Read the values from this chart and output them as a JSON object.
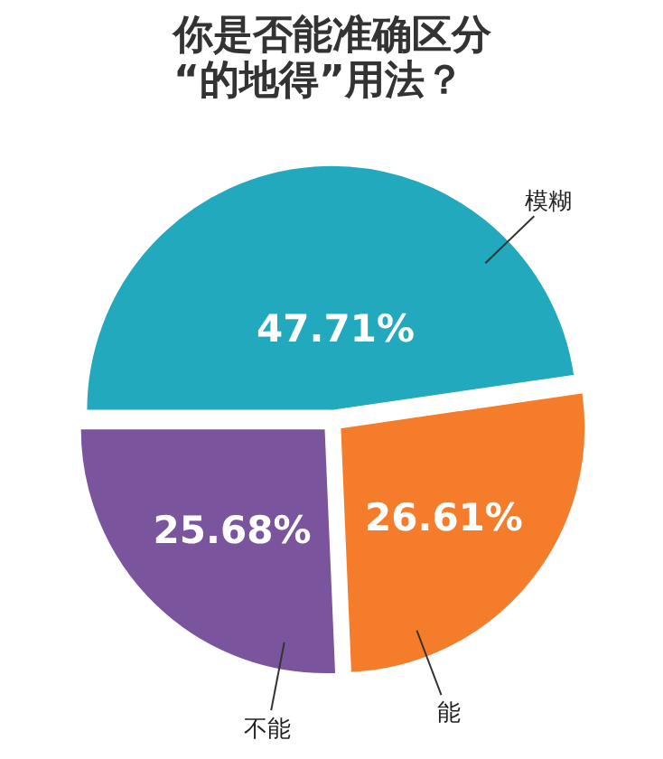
{
  "chart_data": {
    "type": "pie",
    "title": "你是否能准确区分\n“的地得”用法？",
    "categories": [
      "模糊",
      "能",
      "不能"
    ],
    "values": [
      47.71,
      26.61,
      25.68
    ],
    "colors": [
      "#22a9bd",
      "#f47c2b",
      "#7a559e"
    ],
    "value_labels": [
      "47.71%",
      "26.61%",
      "25.68%"
    ]
  }
}
